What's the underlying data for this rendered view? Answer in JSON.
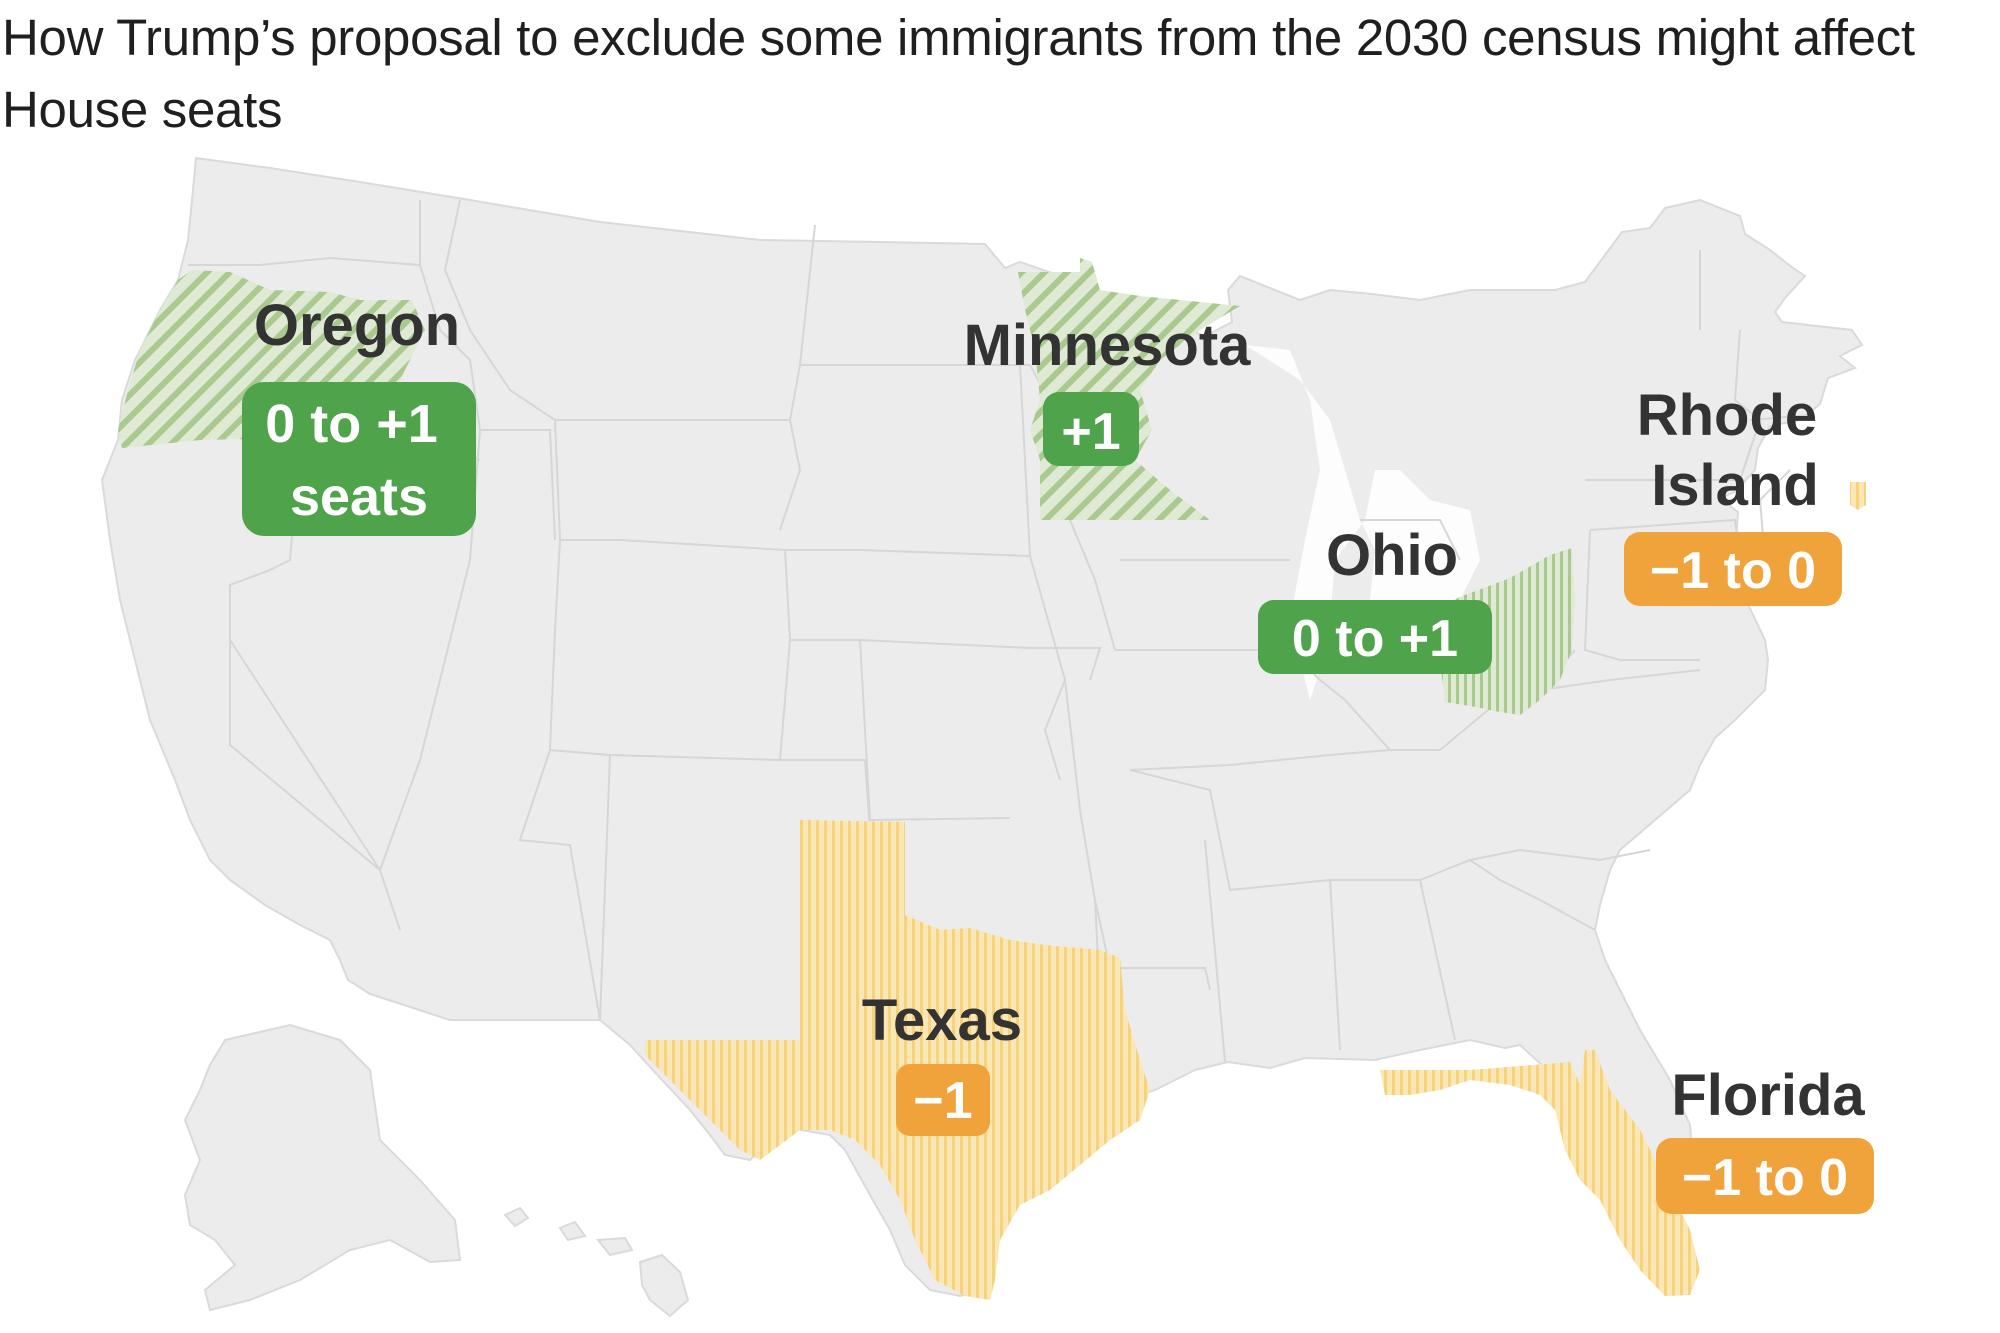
{
  "title": "How Trump’s proposal to exclude some immigrants from the 2030 census might affect House seats",
  "colors": {
    "land": "#ececec",
    "border": "#dadada",
    "gain_hatch": "#a9c98f",
    "gain_pill": "#4ea34b",
    "loss_hatch": "#f6d27a",
    "loss_pill": "#f0a23b",
    "label": "#333333"
  },
  "states": [
    {
      "name": "Oregon",
      "change": "0 to +1 seats",
      "direction": "gain",
      "icon": "diagonal-hatch"
    },
    {
      "name": "Minnesota",
      "change": "+1",
      "direction": "gain",
      "icon": "diagonal-hatch"
    },
    {
      "name": "Ohio",
      "change": "0 to +1",
      "direction": "gain",
      "icon": "vertical-hatch"
    },
    {
      "name": "Rhode Island",
      "change": "−1 to 0",
      "direction": "loss",
      "icon": "vertical-hatch"
    },
    {
      "name": "Texas",
      "change": "−1",
      "direction": "loss",
      "icon": "vertical-hatch"
    },
    {
      "name": "Florida",
      "change": "−1 to 0",
      "direction": "loss",
      "icon": "vertical-hatch"
    }
  ]
}
